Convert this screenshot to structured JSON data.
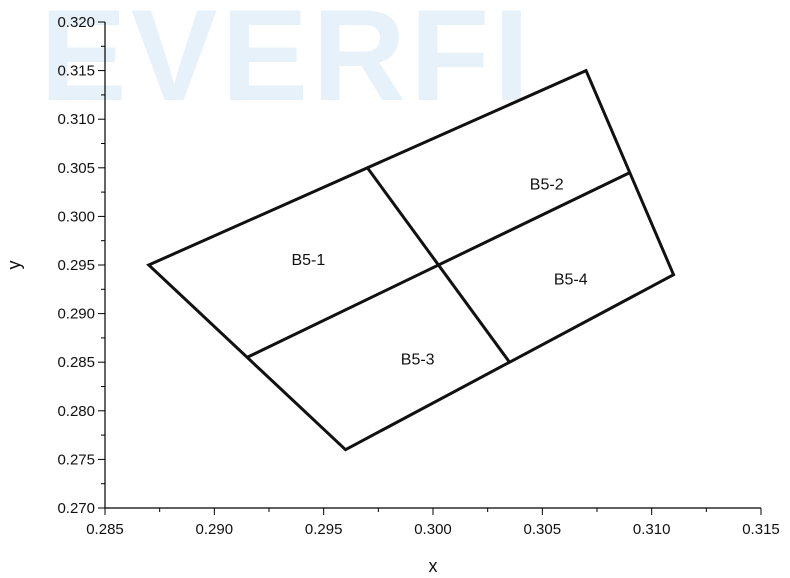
{
  "watermark": "EVERFI",
  "chart_data": {
    "type": "diagram-on-axes",
    "xlabel": "x",
    "ylabel": "y",
    "xlim": [
      0.285,
      0.315
    ],
    "ylim": [
      0.27,
      0.32
    ],
    "x_ticks": [
      "0.285",
      "0.290",
      "0.295",
      "0.300",
      "0.305",
      "0.310",
      "0.315"
    ],
    "y_ticks": [
      "0.270",
      "0.275",
      "0.280",
      "0.285",
      "0.290",
      "0.295",
      "0.300",
      "0.305",
      "0.310",
      "0.315",
      "0.320"
    ],
    "grid": false,
    "outline": [
      [
        0.287,
        0.295
      ],
      [
        0.307,
        0.315
      ],
      [
        0.311,
        0.294
      ],
      [
        0.296,
        0.276
      ]
    ],
    "dividers": [
      [
        [
          0.2915,
          0.2855
        ],
        [
          0.309,
          0.3045
        ]
      ],
      [
        [
          0.297,
          0.305
        ],
        [
          0.3035,
          0.285
        ]
      ]
    ],
    "regions": [
      {
        "label": "B5-1",
        "x": 0.2943,
        "y": 0.2955
      },
      {
        "label": "B5-2",
        "x": 0.3052,
        "y": 0.3033
      },
      {
        "label": "B5-3",
        "x": 0.2993,
        "y": 0.2853
      },
      {
        "label": "B5-4",
        "x": 0.3063,
        "y": 0.2935
      }
    ]
  }
}
